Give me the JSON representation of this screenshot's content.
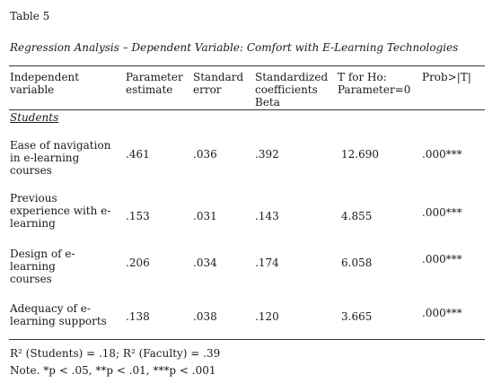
{
  "table": {
    "title": "Table 5",
    "subtitle": "Regression Analysis – Dependent Variable:  Comfort with E-Learning Technologies",
    "headers": [
      [
        "Independent",
        "variable"
      ],
      [
        "Parameter",
        "estimate"
      ],
      [
        "Standard",
        "error"
      ],
      [
        "Standardized",
        "coefficients",
        "Beta"
      ],
      [
        "T for Ho:",
        "Parameter=0"
      ],
      [
        "Prob>|T|"
      ]
    ],
    "group_label": "Students",
    "rows": [
      {
        "variable": [
          "Ease of navigation",
          "in e-learning",
          "courses"
        ],
        "estimate": ".461",
        "error": ".036",
        "beta": ".392",
        "t": "12.690",
        "prob": ".000***"
      },
      {
        "variable": [
          "Previous",
          "experience with e-",
          "learning"
        ],
        "estimate": ".153",
        "error": ".031",
        "beta": ".143",
        "t": "4.855",
        "prob": ".000***"
      },
      {
        "variable": [
          "Design of e-",
          "learning",
          "courses"
        ],
        "estimate": ".206",
        "error": ".034",
        "beta": ".174",
        "t": "6.058",
        "prob": ".000***"
      },
      {
        "variable": [
          "Adequacy of e-",
          "learning supports"
        ],
        "estimate": ".138",
        "error": ".038",
        "beta": ".120",
        "t": "3.665",
        "prob": ".000***"
      }
    ],
    "footer_r2": "R² (Students) = .18; R² (Faculty) = .39",
    "footer_note": "Note. *p < .05, **p < .01, ***p < .001"
  }
}
